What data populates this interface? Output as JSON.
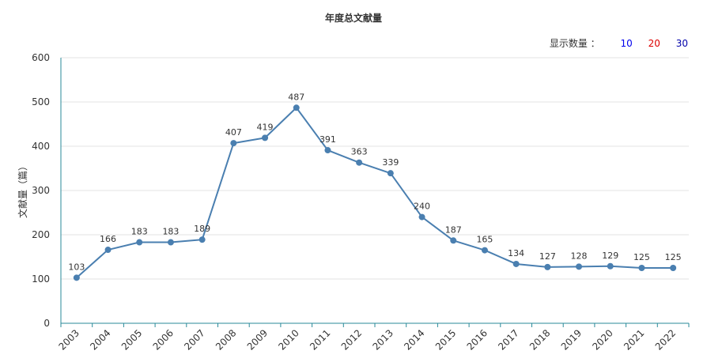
{
  "header": {
    "display_count_label": "显示数量 ：",
    "options": [
      {
        "label": "10",
        "color": "#0000ee"
      },
      {
        "label": "20",
        "color": "#dd0000"
      },
      {
        "label": "30",
        "color": "#0000aa"
      }
    ]
  },
  "colors": {
    "line": "#4a7fb0",
    "axis": "#2a8a9a",
    "grid": "#e3e3e3"
  },
  "chart_data": {
    "type": "line",
    "title": "年度总文献量",
    "xlabel": "",
    "ylabel": "文献量（篇）",
    "ylim": [
      0,
      600
    ],
    "yticks": [
      0,
      100,
      200,
      300,
      400,
      500,
      600
    ],
    "grid": true,
    "categories": [
      "2003",
      "2004",
      "2005",
      "2006",
      "2007",
      "2008",
      "2009",
      "2010",
      "2011",
      "2012",
      "2013",
      "2014",
      "2015",
      "2016",
      "2017",
      "2018",
      "2019",
      "2020",
      "2021",
      "2022"
    ],
    "series": [
      {
        "values": [
          103,
          166,
          183,
          183,
          189,
          407,
          419,
          487,
          391,
          363,
          339,
          240,
          187,
          165,
          134,
          127,
          128,
          129,
          125,
          125
        ]
      }
    ]
  }
}
